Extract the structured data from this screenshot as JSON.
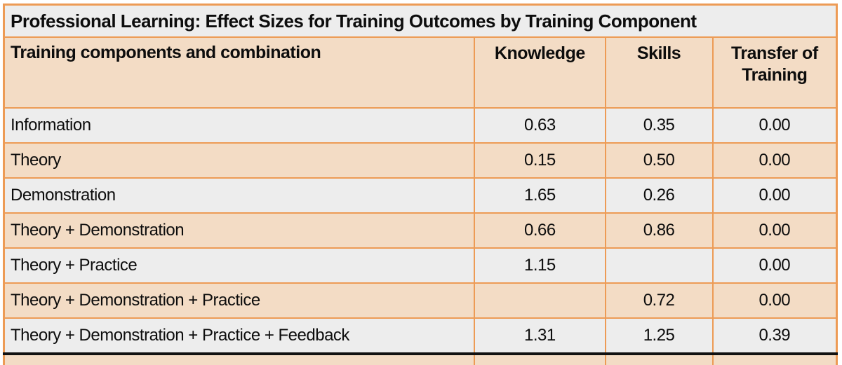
{
  "title": "Professional Learning: Effect Sizes for Training Outcomes by Training Component",
  "table": {
    "columns": {
      "components": "Training components and combination",
      "knowledge": "Knowledge",
      "skills": "Skills",
      "transfer": "Transfer of Training"
    },
    "rows": [
      {
        "label": "Information",
        "values": [
          "0.63",
          "0.35",
          "0.00"
        ]
      },
      {
        "label": "Theory",
        "values": [
          "0.15",
          "0.50",
          "0.00"
        ]
      },
      {
        "label": "Demonstration",
        "values": [
          "1.65",
          "0.26",
          "0.00"
        ]
      },
      {
        "label": "Theory + Demonstration",
        "values": [
          "0.66",
          "0.86",
          "0.00"
        ]
      },
      {
        "label": "Theory + Practice",
        "values": [
          "1.15",
          "",
          "0.00"
        ]
      },
      {
        "label": "Theory + Demonstration + Practice",
        "values": [
          "",
          "0.72",
          "0.00"
        ]
      },
      {
        "label": "Theory + Demonstration + Practice + Feedback",
        "values": [
          "1.31",
          "1.25",
          "0.39"
        ]
      }
    ]
  },
  "colors": {
    "border_orange": "#ED9B55",
    "fill_peach": "#F3DCC5",
    "fill_gray": "#EDEDED",
    "text_black": "#0D0D0D",
    "rule_black": "#111111",
    "page_bg": "#FFFFFF"
  }
}
